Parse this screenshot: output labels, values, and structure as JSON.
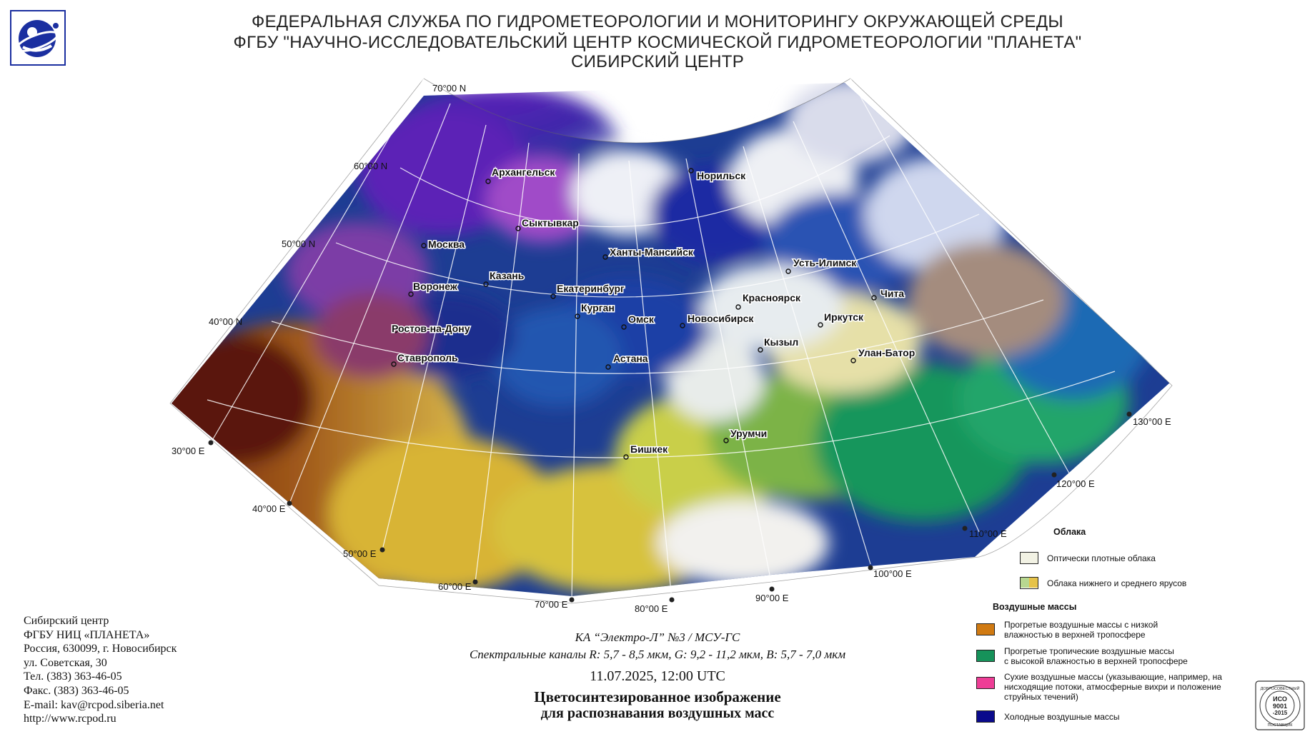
{
  "header": {
    "line1": "ФЕДЕРАЛЬНАЯ СЛУЖБА ПО ГИДРОМЕТЕОРОЛОГИИ И МОНИТОРИНГУ ОКРУЖАЮЩЕЙ СРЕДЫ",
    "line2": "ФГБУ \"НАУЧНО-ИССЛЕДОВАТЕЛЬСКИЙ ЦЕНТР КОСМИЧЕСКОЙ ГИДРОМЕТЕОРОЛОГИИ \"ПЛАНЕТА\"",
    "line3": "СИБИРСКИЙ ЦЕНТР",
    "logo_icon": "planeta-globe-logo-icon"
  },
  "map": {
    "lat_labels": [
      "70°00 N",
      "60°00 N",
      "50°00 N",
      "40°00 N"
    ],
    "lon_labels": [
      "30°00 E",
      "40°00 E",
      "50°00 E",
      "60°00 E",
      "70°00 E",
      "80°00 E",
      "90°00 E",
      "100°00 E",
      "110°00 E",
      "120°00 E",
      "130°00 E"
    ],
    "cities": [
      "Архангельск",
      "Норильск",
      "Сыктывкар",
      "Москва",
      "Ханты-Мансийск",
      "Казань",
      "Усть-Илимск",
      "Воронеж",
      "Екатеринбург",
      "Красноярск",
      "Чита",
      "Курган",
      "Омск",
      "Новосибирск",
      "Иркутск",
      "Ростов-на-Дону",
      "Кызыл",
      "Улан-Батор",
      "Астана",
      "Ставрополь",
      "Урумчи",
      "Бишкек"
    ]
  },
  "contact": {
    "line1": "Сибирский центр",
    "line2": "ФГБУ НИЦ «ПЛАНЕТА»",
    "line3": "Россия, 630099, г. Новосибирск",
    "line4": "ул. Советская, 30",
    "line5": "Тел. (383) 363-46-05",
    "line6": "Факс. (383) 363-46-05",
    "line7": "E-mail: kav@rcpod.siberia.net",
    "line8": "http://www.rcpod.ru"
  },
  "caption": {
    "satellite": "КА “Электро-Л” №3 / МСУ-ГС",
    "channels": "Спектральные каналы R: 5,7 - 8,5 мкм, G: 9,2 - 11,2 мкм, B: 5,7 - 7,0 мкм",
    "datetime": "11.07.2025, 12:00 UTC",
    "title1": "Цветосинтезированное изображение",
    "title2": "для распознавания воздушных масс"
  },
  "legend": {
    "clouds_title": "Облака",
    "clouds": [
      {
        "label": "Оптически плотные облака",
        "color": "#f2f2e4"
      },
      {
        "label": "Облака нижнего и среднего ярусов",
        "color": "#b8d890",
        "color2": "#e6c34a"
      }
    ],
    "air_title": "Воздушные массы",
    "air": [
      {
        "label1": "Прогретые воздушные массы с низкой",
        "label2": "влажностью в верхней тропосфере",
        "label3": "",
        "color": "#d07a12"
      },
      {
        "label1": "Прогретые тропичеcкие воздушные массы",
        "label2": "с высокой влажностью в верхней тропосфере",
        "label3": "",
        "color": "#16925a"
      },
      {
        "label1": "Сухие воздушные массы (указывающие, например, на",
        "label2": "нисходящие потоки, атмосферные вихри и положение",
        "label3": "струйных течений)",
        "color": "#ee3d96"
      },
      {
        "label1": "Холодные воздушные массы",
        "label2": "",
        "label3": "",
        "color": "#0a0a8c"
      }
    ]
  },
  "iso_badge": {
    "top": "ДОБРОСОВЕСТНЫЙ",
    "l1": "ИСО",
    "l2": "9001",
    "l3": "-2015",
    "bottom": "ПОСТАВЩИК"
  }
}
